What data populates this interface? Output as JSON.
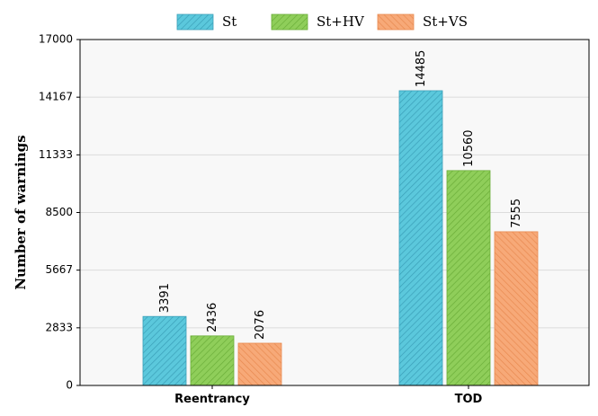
{
  "chart_data": {
    "type": "bar",
    "title": "",
    "xlabel": "",
    "ylabel": "Number of warnings",
    "categories": [
      "Reentrancy",
      "TOD"
    ],
    "series": [
      {
        "name": "St",
        "values": [
          3391,
          14485
        ],
        "color": "#5bc8dc",
        "hatch": "#3a9fb8",
        "labels": [
          "3391",
          "14485"
        ]
      },
      {
        "name": "St+HV",
        "values": [
          2436,
          10560
        ],
        "color": "#8fce5a",
        "hatch": "#6aad38",
        "labels": [
          "2436",
          "10560"
        ]
      },
      {
        "name": "St+VS",
        "values": [
          2076,
          7555
        ],
        "color": "#f7a978",
        "hatch": "#e88a50",
        "labels": [
          "2076",
          "7555"
        ]
      }
    ],
    "ylim": [
      0,
      17000
    ],
    "yticks": [
      "0",
      "2833",
      "5667",
      "8500",
      "11333",
      "14167",
      "17000"
    ],
    "ytick_values": [
      0,
      2833,
      5667,
      8500,
      11333,
      14167,
      17000
    ],
    "grid": true,
    "legend_position": "top-center"
  }
}
